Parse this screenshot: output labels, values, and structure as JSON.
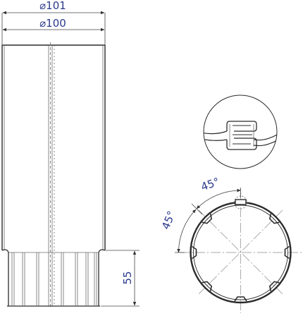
{
  "dimensions": {
    "outer_diameter": "⌀101",
    "inner_diameter": "⌀100",
    "socket_length": "55",
    "angle_top": "45°",
    "angle_left": "45°"
  },
  "colors": {
    "dimension_text": "#2a3a8c",
    "lines": "#2b2b2b"
  }
}
